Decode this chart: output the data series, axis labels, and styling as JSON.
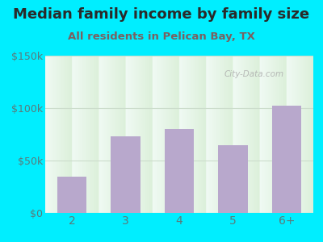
{
  "title": "Median family income by family size",
  "subtitle": "All residents in Pelican Bay, TX",
  "categories": [
    "2",
    "3",
    "4",
    "5",
    "6+"
  ],
  "values": [
    35000,
    73000,
    80000,
    65000,
    102000
  ],
  "bar_color": "#b8a8cc",
  "ylim": [
    0,
    150000
  ],
  "yticks": [
    0,
    50000,
    100000,
    150000
  ],
  "ytick_labels": [
    "$0",
    "$50k",
    "$100k",
    "$150k"
  ],
  "outer_bg_color": "#00eeff",
  "title_color": "#2a2a2a",
  "subtitle_color": "#7a6060",
  "title_fontsize": 13,
  "subtitle_fontsize": 9.5,
  "tick_label_color": "#5a7a7a",
  "tick_fontsize": 9,
  "watermark": "City-Data.com",
  "plot_bg_top": "#f0f8f4",
  "plot_bg_bottom": "#e8f5e0",
  "grid_color": "#ccddcc"
}
